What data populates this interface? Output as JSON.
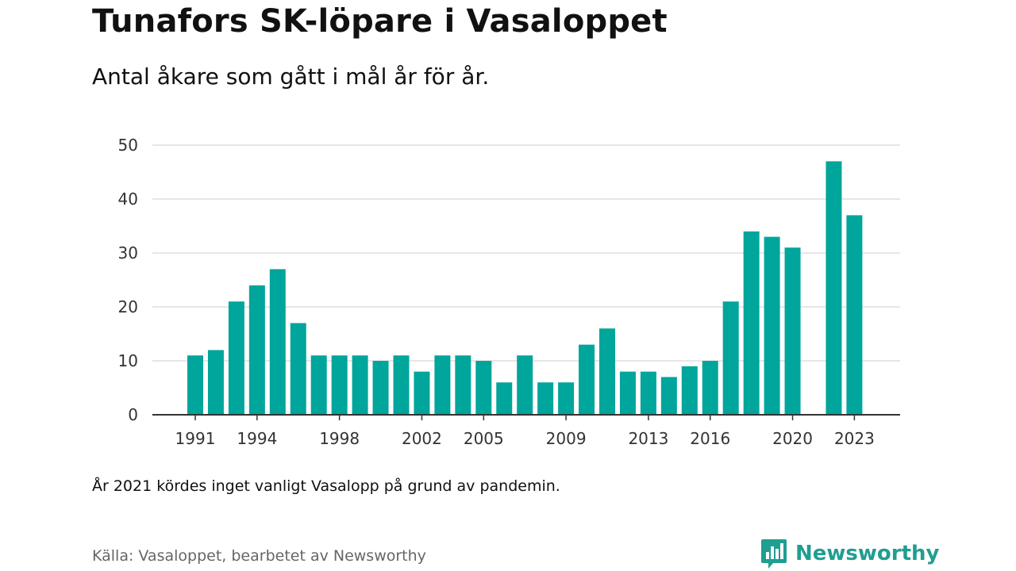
{
  "title": "Tunafors SK-löpare i Vasaloppet",
  "subtitle": "Antal åkare som gått i mål år för år.",
  "note": "År 2021 kördes inget vanligt Vasalopp på grund av pandemin.",
  "source": "Källa: Vasaloppet, bearbetet av Newsworthy",
  "brand": {
    "name": "Newsworthy",
    "icon": "newsworthy-chart-bubble-icon"
  },
  "colors": {
    "bar": "#00a59b",
    "grid": "#dddddd",
    "axis": "#333333",
    "brand": "#1f9e91"
  },
  "chart_data": {
    "type": "bar",
    "title": "Tunafors SK-löpare i Vasaloppet",
    "subtitle": "Antal åkare som gått i mål år för år.",
    "xlabel": "",
    "ylabel": "",
    "ylim": [
      0,
      50
    ],
    "yticks": [
      0,
      10,
      20,
      30,
      40,
      50
    ],
    "xticks": [
      1991,
      1994,
      1998,
      2002,
      2005,
      2009,
      2013,
      2016,
      2020,
      2023
    ],
    "grid": true,
    "legend": "none",
    "x": [
      1991,
      1992,
      1993,
      1994,
      1995,
      1996,
      1997,
      1998,
      1999,
      2000,
      2001,
      2002,
      2003,
      2004,
      2005,
      2006,
      2007,
      2008,
      2009,
      2010,
      2011,
      2012,
      2013,
      2014,
      2015,
      2016,
      2017,
      2018,
      2019,
      2020,
      2021,
      2022,
      2023
    ],
    "values": [
      11,
      12,
      21,
      24,
      27,
      17,
      11,
      11,
      11,
      10,
      11,
      8,
      11,
      11,
      10,
      6,
      11,
      6,
      6,
      13,
      16,
      8,
      8,
      7,
      9,
      10,
      21,
      34,
      33,
      31,
      null,
      47,
      37
    ]
  }
}
